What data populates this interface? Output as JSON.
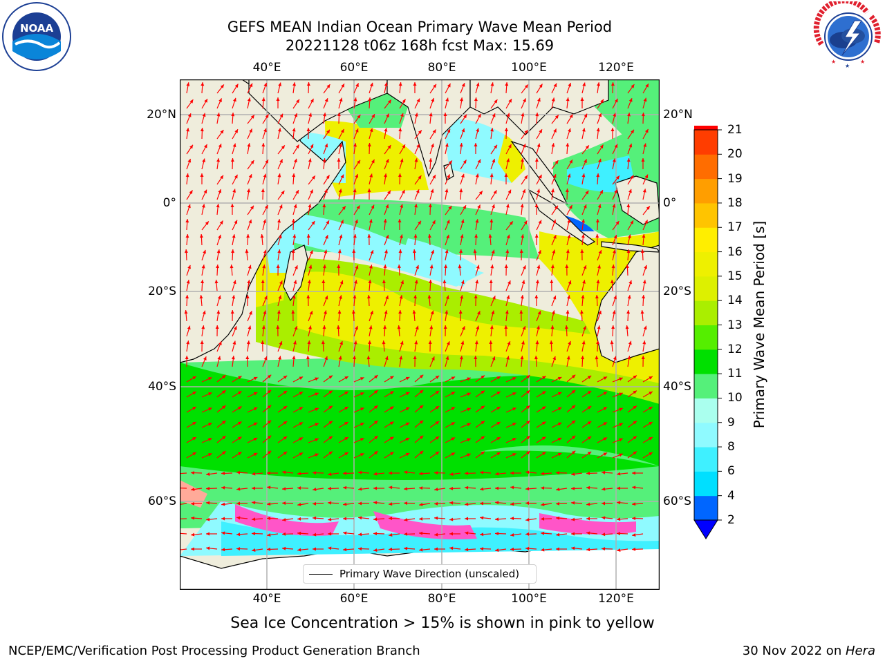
{
  "title": {
    "line1": "GEFS MEAN Indian Ocean Primary Wave Mean Period",
    "line2": "20221128 t06z 168h fcst   Max: 15.69"
  },
  "logos": {
    "noaa": "NOAA",
    "noaa_ring": "NATIONAL OCEANIC AND ATMOSPHERIC ADMINISTRATION · U.S. DEPARTMENT OF COMMERCE",
    "nws_ring": "NATIONAL WEATHER SERVICE"
  },
  "axes": {
    "lon_labels": [
      "40°E",
      "60°E",
      "80°E",
      "100°E",
      "120°E"
    ],
    "lat_labels": [
      "20°N",
      "0°",
      "20°S",
      "40°S",
      "60°S"
    ]
  },
  "map": {
    "lon_range": [
      20,
      130
    ],
    "lat_range": [
      -72,
      28
    ],
    "land_color": "#efeddc",
    "gridline_color": "#b0b0b0",
    "arrow_color": "#ff0000"
  },
  "colorbar": {
    "label": "Primary Wave Mean Period [s]",
    "tick_labels": [
      "2",
      "4",
      "6",
      "8",
      "9",
      "10",
      "11",
      "12",
      "13",
      "14",
      "15",
      "16",
      "17",
      "18",
      "19",
      "20",
      "21"
    ],
    "colors": [
      "#0066ff",
      "#00dfff",
      "#3ff0ff",
      "#8ffaff",
      "#aaffee",
      "#55f07a",
      "#00e000",
      "#55ee00",
      "#aaee00",
      "#ddf000",
      "#eef000",
      "#ffee00",
      "#ffc400",
      "#ff9e00",
      "#ff6d00",
      "#ff3d00",
      "#ff0000"
    ],
    "extend_color": "#0000ff"
  },
  "legend": {
    "label": "Primary Wave Direction (unscaled)"
  },
  "subtitle": "Sea Ice Concentration > 15% is shown in pink to yellow",
  "footer": {
    "left": "NCEP/EMC/Verification Post Processing Product Generation Branch",
    "right_prefix": "30 Nov 2022 on ",
    "right_host": "Hera"
  }
}
